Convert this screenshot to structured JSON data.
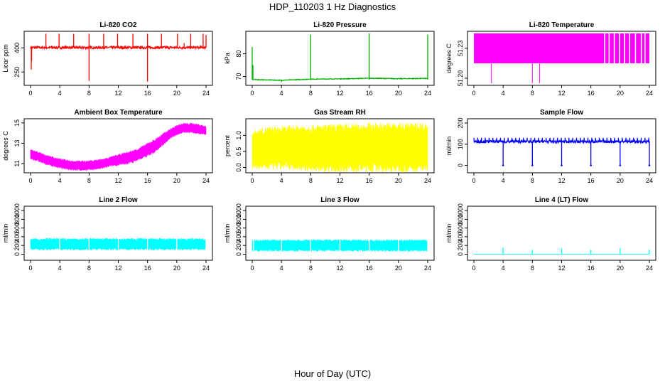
{
  "title": "HDP_110203  1 Hz Diagnostics",
  "xlabel": "Hour of Day (UTC)",
  "chart_data": [
    {
      "type": "line",
      "title": "Li-820 CO2",
      "ylabel": "Licor ppm",
      "color": "#ff0000",
      "xlim": [
        0,
        24
      ],
      "ylim": [
        180,
        490
      ],
      "xticks": [
        0,
        4,
        8,
        12,
        16,
        20,
        24
      ],
      "yticks": [
        250,
        400
      ],
      "baseline": 402,
      "noise": 8,
      "spikes": [
        {
          "x": 2.1,
          "y": 488
        },
        {
          "x": 3.9,
          "y": 488
        },
        {
          "x": 5.9,
          "y": 488
        },
        {
          "x": 8.0,
          "y": 488
        },
        {
          "x": 10.0,
          "y": 488
        },
        {
          "x": 11.9,
          "y": 488
        },
        {
          "x": 14.0,
          "y": 488
        },
        {
          "x": 16.0,
          "y": 488
        },
        {
          "x": 17.9,
          "y": 488
        },
        {
          "x": 20.1,
          "y": 488
        },
        {
          "x": 21.0,
          "y": 430
        },
        {
          "x": 21.9,
          "y": 488
        },
        {
          "x": 23.6,
          "y": 488
        },
        {
          "x": 24.0,
          "y": 480
        },
        {
          "x": 8.0,
          "y": 195
        },
        {
          "x": 16.0,
          "y": 190
        },
        {
          "x": 0.1,
          "y": 265
        },
        {
          "x": 0.15,
          "y": 320
        }
      ]
    },
    {
      "type": "line",
      "title": "Li-820 Pressure",
      "ylabel": "kPa",
      "color": "#00b000",
      "xlim": [
        0,
        24
      ],
      "ylim": [
        67,
        89
      ],
      "xticks": [
        0,
        4,
        8,
        12,
        16,
        20,
        24
      ],
      "yticks": [
        70,
        80
      ],
      "segments": [
        [
          0,
          68.6
        ],
        [
          4,
          68.3
        ],
        [
          8,
          68.8
        ],
        [
          12,
          68.9
        ],
        [
          16,
          69.2
        ],
        [
          20,
          69.0
        ],
        [
          24,
          69.1
        ]
      ],
      "noise": 0.15,
      "spikes": [
        {
          "x": 0.0,
          "y": 83
        },
        {
          "x": 0.1,
          "y": 75
        },
        {
          "x": 8.0,
          "y": 88.5
        },
        {
          "x": 16.0,
          "y": 89
        },
        {
          "x": 24.0,
          "y": 88.5
        },
        {
          "x": 4.0,
          "y": 67.5
        }
      ]
    },
    {
      "type": "bar",
      "title": "Li-820 Temperature",
      "ylabel": "degrees C",
      "color": "#ff00ff",
      "xlim": [
        0,
        24
      ],
      "ylim": [
        51.195,
        51.245
      ],
      "xticks": [
        0,
        4,
        8,
        12,
        16,
        20,
        24
      ],
      "yticks": [
        51.2,
        51.23
      ],
      "ytick_labels": [
        "51.20",
        "51.23"
      ],
      "band": [
        51.215,
        51.245
      ],
      "gaps": [
        17.9,
        18.5,
        19.2,
        19.9,
        20.6,
        21.3,
        22.1,
        22.9,
        23.4
      ],
      "drops": [
        {
          "x": 2.4,
          "y": 51.195
        },
        {
          "x": 8.0,
          "y": 51.195
        },
        {
          "x": 9.0,
          "y": 51.195
        }
      ]
    },
    {
      "type": "area",
      "title": "Ambient Box Temperature",
      "ylabel": "degrees C",
      "color": "#ff00ff",
      "xlim": [
        0,
        24
      ],
      "ylim": [
        10.3,
        15.2
      ],
      "xticks": [
        0,
        4,
        8,
        12,
        16,
        20,
        24
      ],
      "yticks": [
        11,
        13,
        15
      ],
      "x": [
        0,
        1,
        2,
        3,
        4,
        5,
        6,
        7,
        8,
        9,
        10,
        11,
        12,
        13,
        14,
        15,
        16,
        17,
        18,
        19,
        20,
        21,
        22,
        23,
        24
      ],
      "low": [
        11.5,
        11.3,
        11.0,
        10.8,
        10.6,
        10.5,
        10.4,
        10.4,
        10.4,
        10.5,
        10.6,
        10.8,
        10.9,
        11.0,
        11.2,
        11.5,
        11.8,
        12.2,
        12.8,
        13.5,
        13.9,
        14.1,
        14.1,
        14.0,
        13.9
      ],
      "high": [
        12.3,
        12.1,
        11.8,
        11.6,
        11.4,
        11.3,
        11.2,
        11.2,
        11.2,
        11.3,
        11.4,
        11.6,
        11.8,
        12.0,
        12.2,
        12.5,
        12.9,
        13.3,
        13.8,
        14.3,
        14.7,
        14.9,
        14.9,
        14.8,
        14.6
      ]
    },
    {
      "type": "area",
      "title": "Gas Stream RH",
      "ylabel": "percent",
      "color": "#ffff00",
      "xlim": [
        0,
        24
      ],
      "ylim": [
        -0.1,
        1.45
      ],
      "xticks": [
        0,
        4,
        8,
        12,
        16,
        20,
        24
      ],
      "yticks": [
        0.0,
        0.5,
        1.0
      ],
      "ytick_labels": [
        "0.0",
        "0.5",
        "1.0"
      ],
      "x": [
        0,
        2,
        4,
        6,
        8,
        10,
        12,
        14,
        16,
        18,
        20,
        22,
        24
      ],
      "low": [
        0.05,
        0.05,
        0.05,
        0.05,
        0.0,
        0.0,
        0.0,
        0.0,
        0.0,
        0.0,
        0.0,
        0.0,
        0.0
      ],
      "high": [
        1.05,
        1.15,
        1.15,
        1.2,
        1.2,
        1.2,
        1.22,
        1.22,
        1.25,
        1.25,
        1.25,
        1.25,
        1.25
      ]
    },
    {
      "type": "line",
      "title": "Sample Flow",
      "ylabel": "ml/min",
      "color": "#0000ff",
      "xlim": [
        0,
        24
      ],
      "ylim": [
        -25,
        210
      ],
      "xticks": [
        0,
        4,
        8,
        12,
        16,
        20,
        24
      ],
      "yticks": [
        0,
        100,
        200
      ],
      "baseline": 112,
      "noise": 6,
      "spike_every": 0.5,
      "spike_top": 130,
      "drops": [
        {
          "x": 4.0,
          "y": 0
        },
        {
          "x": 8.0,
          "y": 0
        },
        {
          "x": 12.0,
          "y": 0
        },
        {
          "x": 16.0,
          "y": 0
        },
        {
          "x": 20.0,
          "y": 0
        },
        {
          "x": 24.0,
          "y": 0
        }
      ]
    },
    {
      "type": "area",
      "title": "Line 2 Flow",
      "ylabel": "ml/min",
      "color": "#00ffff",
      "xlim": [
        0,
        24
      ],
      "ylim": [
        -90,
        1050
      ],
      "xticks": [
        0,
        4,
        8,
        12,
        16,
        20,
        24
      ],
      "yticks": [
        0,
        200,
        400,
        600,
        800,
        1000
      ],
      "x": [
        0,
        24
      ],
      "low": [
        120,
        120
      ],
      "high": [
        340,
        340
      ],
      "gaps": [
        4.0,
        8.0,
        12.0,
        16.0,
        20.0,
        24.0
      ]
    },
    {
      "type": "area",
      "title": "Line 3 Flow",
      "ylabel": "ml/min",
      "color": "#00ffff",
      "xlim": [
        0,
        24
      ],
      "ylim": [
        -90,
        1050
      ],
      "xticks": [
        0,
        4,
        8,
        12,
        16,
        20,
        24
      ],
      "yticks": [
        0,
        200,
        400,
        600,
        800,
        1000
      ],
      "x": [
        0,
        24
      ],
      "low": [
        90,
        90
      ],
      "high": [
        310,
        310
      ],
      "gaps": [
        0.2,
        4.0,
        8.0,
        12.0,
        16.0,
        20.0,
        24.0
      ]
    },
    {
      "type": "line",
      "title": "Line 4 (LT) Flow",
      "ylabel": "ml/min",
      "color": "#00ffff",
      "xlim": [
        0,
        24
      ],
      "ylim": [
        -90,
        1050
      ],
      "xticks": [
        0,
        4,
        8,
        12,
        16,
        20,
        24
      ],
      "yticks": [
        0,
        200,
        400,
        600,
        800,
        1000
      ],
      "baseline": 0,
      "noise": 0,
      "spikes": [
        {
          "x": 4.0,
          "y": 150
        },
        {
          "x": 8.0,
          "y": 100
        },
        {
          "x": 12.0,
          "y": 140
        },
        {
          "x": 16.0,
          "y": 100
        },
        {
          "x": 20.0,
          "y": 140
        },
        {
          "x": 24.0,
          "y": 100
        }
      ]
    }
  ]
}
